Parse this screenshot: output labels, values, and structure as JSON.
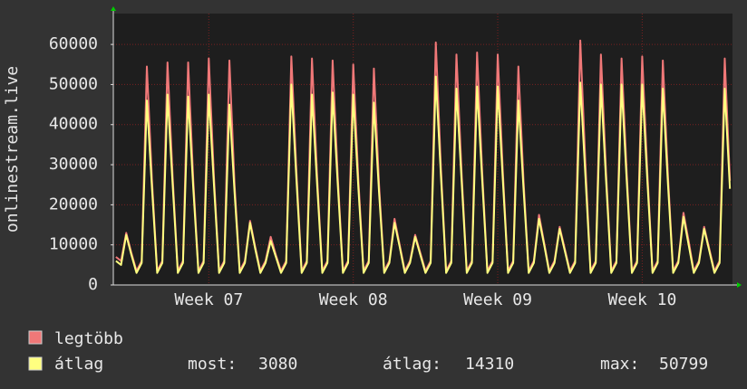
{
  "chart_data": {
    "type": "line",
    "ylabel": "onlinestream.live",
    "categories": [
      null,
      null,
      null,
      null,
      null,
      null,
      null,
      null,
      null,
      null,
      null,
      null,
      null,
      null,
      null,
      null,
      null,
      null,
      "Week 07",
      null,
      null,
      null,
      null,
      null,
      null,
      null,
      null,
      null,
      null,
      null,
      null,
      null,
      null,
      null,
      null,
      null,
      null,
      null,
      null,
      null,
      null,
      null,
      null,
      null,
      null,
      null,
      "Week 08",
      null,
      null,
      null,
      null,
      null,
      null,
      null,
      null,
      null,
      null,
      null,
      null,
      null,
      null,
      null,
      null,
      null,
      null,
      null,
      null,
      null,
      null,
      null,
      null,
      null,
      null,
      null,
      "Week 09",
      null,
      null,
      null,
      null,
      null,
      null,
      null,
      null,
      null,
      null,
      null,
      null,
      null,
      null,
      null,
      null,
      null,
      null,
      null,
      null,
      null,
      null,
      null,
      null,
      null,
      null,
      null,
      "Week 10",
      null,
      null,
      null,
      null,
      null,
      null,
      null,
      null,
      null,
      null,
      null,
      null,
      null,
      null,
      null,
      null,
      null
    ],
    "series": [
      {
        "name": "legtöbb",
        "color": "#f07878",
        "values": [
          7000,
          6000,
          13000,
          8000,
          3500,
          6000,
          54500,
          26000,
          3500,
          6000,
          55500,
          27000,
          3500,
          6000,
          55500,
          26000,
          3500,
          6000,
          56500,
          27000,
          3500,
          6000,
          56000,
          25000,
          3500,
          6000,
          16000,
          9500,
          3500,
          6000,
          12000,
          7500,
          3500,
          6000,
          57000,
          28000,
          3500,
          6000,
          56500,
          27000,
          3500,
          6000,
          56000,
          27000,
          3500,
          6000,
          55000,
          26000,
          3500,
          6000,
          54000,
          25000,
          3500,
          6000,
          16500,
          10000,
          3500,
          6000,
          12500,
          8000,
          3500,
          6000,
          60500,
          29000,
          3500,
          6000,
          57500,
          28000,
          3500,
          6000,
          58000,
          28000,
          3500,
          6000,
          57500,
          28000,
          3500,
          6000,
          54500,
          26000,
          3500,
          6000,
          17500,
          10500,
          3500,
          6000,
          14500,
          9000,
          3500,
          6000,
          61000,
          30000,
          3500,
          6000,
          57500,
          28000,
          3500,
          6000,
          56500,
          28000,
          3500,
          6000,
          57000,
          28000,
          3500,
          6000,
          56000,
          27000,
          3500,
          6000,
          18000,
          11000,
          3500,
          6000,
          14500,
          9000,
          3500,
          6000,
          56500,
          26000
        ]
      },
      {
        "name": "átlag",
        "color": "#ffff80",
        "values": [
          6000,
          5000,
          12500,
          7500,
          3000,
          5500,
          46000,
          24000,
          3000,
          5500,
          47500,
          25000,
          3000,
          5500,
          47000,
          24000,
          3000,
          5500,
          47500,
          25000,
          3000,
          5500,
          45000,
          23000,
          3000,
          5500,
          15500,
          9000,
          3000,
          5500,
          11000,
          7000,
          3000,
          5500,
          50000,
          26000,
          3000,
          5500,
          47500,
          25000,
          3000,
          5500,
          48000,
          25000,
          3000,
          5500,
          47500,
          24000,
          3000,
          5500,
          45500,
          23000,
          3000,
          5500,
          15500,
          9500,
          3000,
          5500,
          12000,
          7500,
          3000,
          5500,
          52000,
          27000,
          3000,
          5500,
          49000,
          26000,
          3000,
          5500,
          49500,
          26000,
          3000,
          5500,
          49500,
          26000,
          3000,
          5500,
          46000,
          24000,
          3000,
          5500,
          16500,
          10000,
          3000,
          5500,
          14000,
          8500,
          3000,
          5500,
          50500,
          27000,
          3000,
          5500,
          50000,
          26000,
          3000,
          5500,
          50000,
          26000,
          3000,
          5500,
          50000,
          26000,
          3000,
          5500,
          49000,
          25000,
          3000,
          5500,
          17000,
          10000,
          3000,
          5500,
          14000,
          8500,
          3000,
          5500,
          49000,
          24000
        ]
      }
    ],
    "stats": [
      {
        "label": "most:",
        "value": 3080
      },
      {
        "label": "átlag:",
        "value": 14310
      },
      {
        "label": "max:",
        "value": 50799
      }
    ],
    "ylim": [
      0,
      67700
    ],
    "yticks": [
      0,
      10000,
      20000,
      30000,
      40000,
      50000,
      60000
    ],
    "grid": true
  }
}
